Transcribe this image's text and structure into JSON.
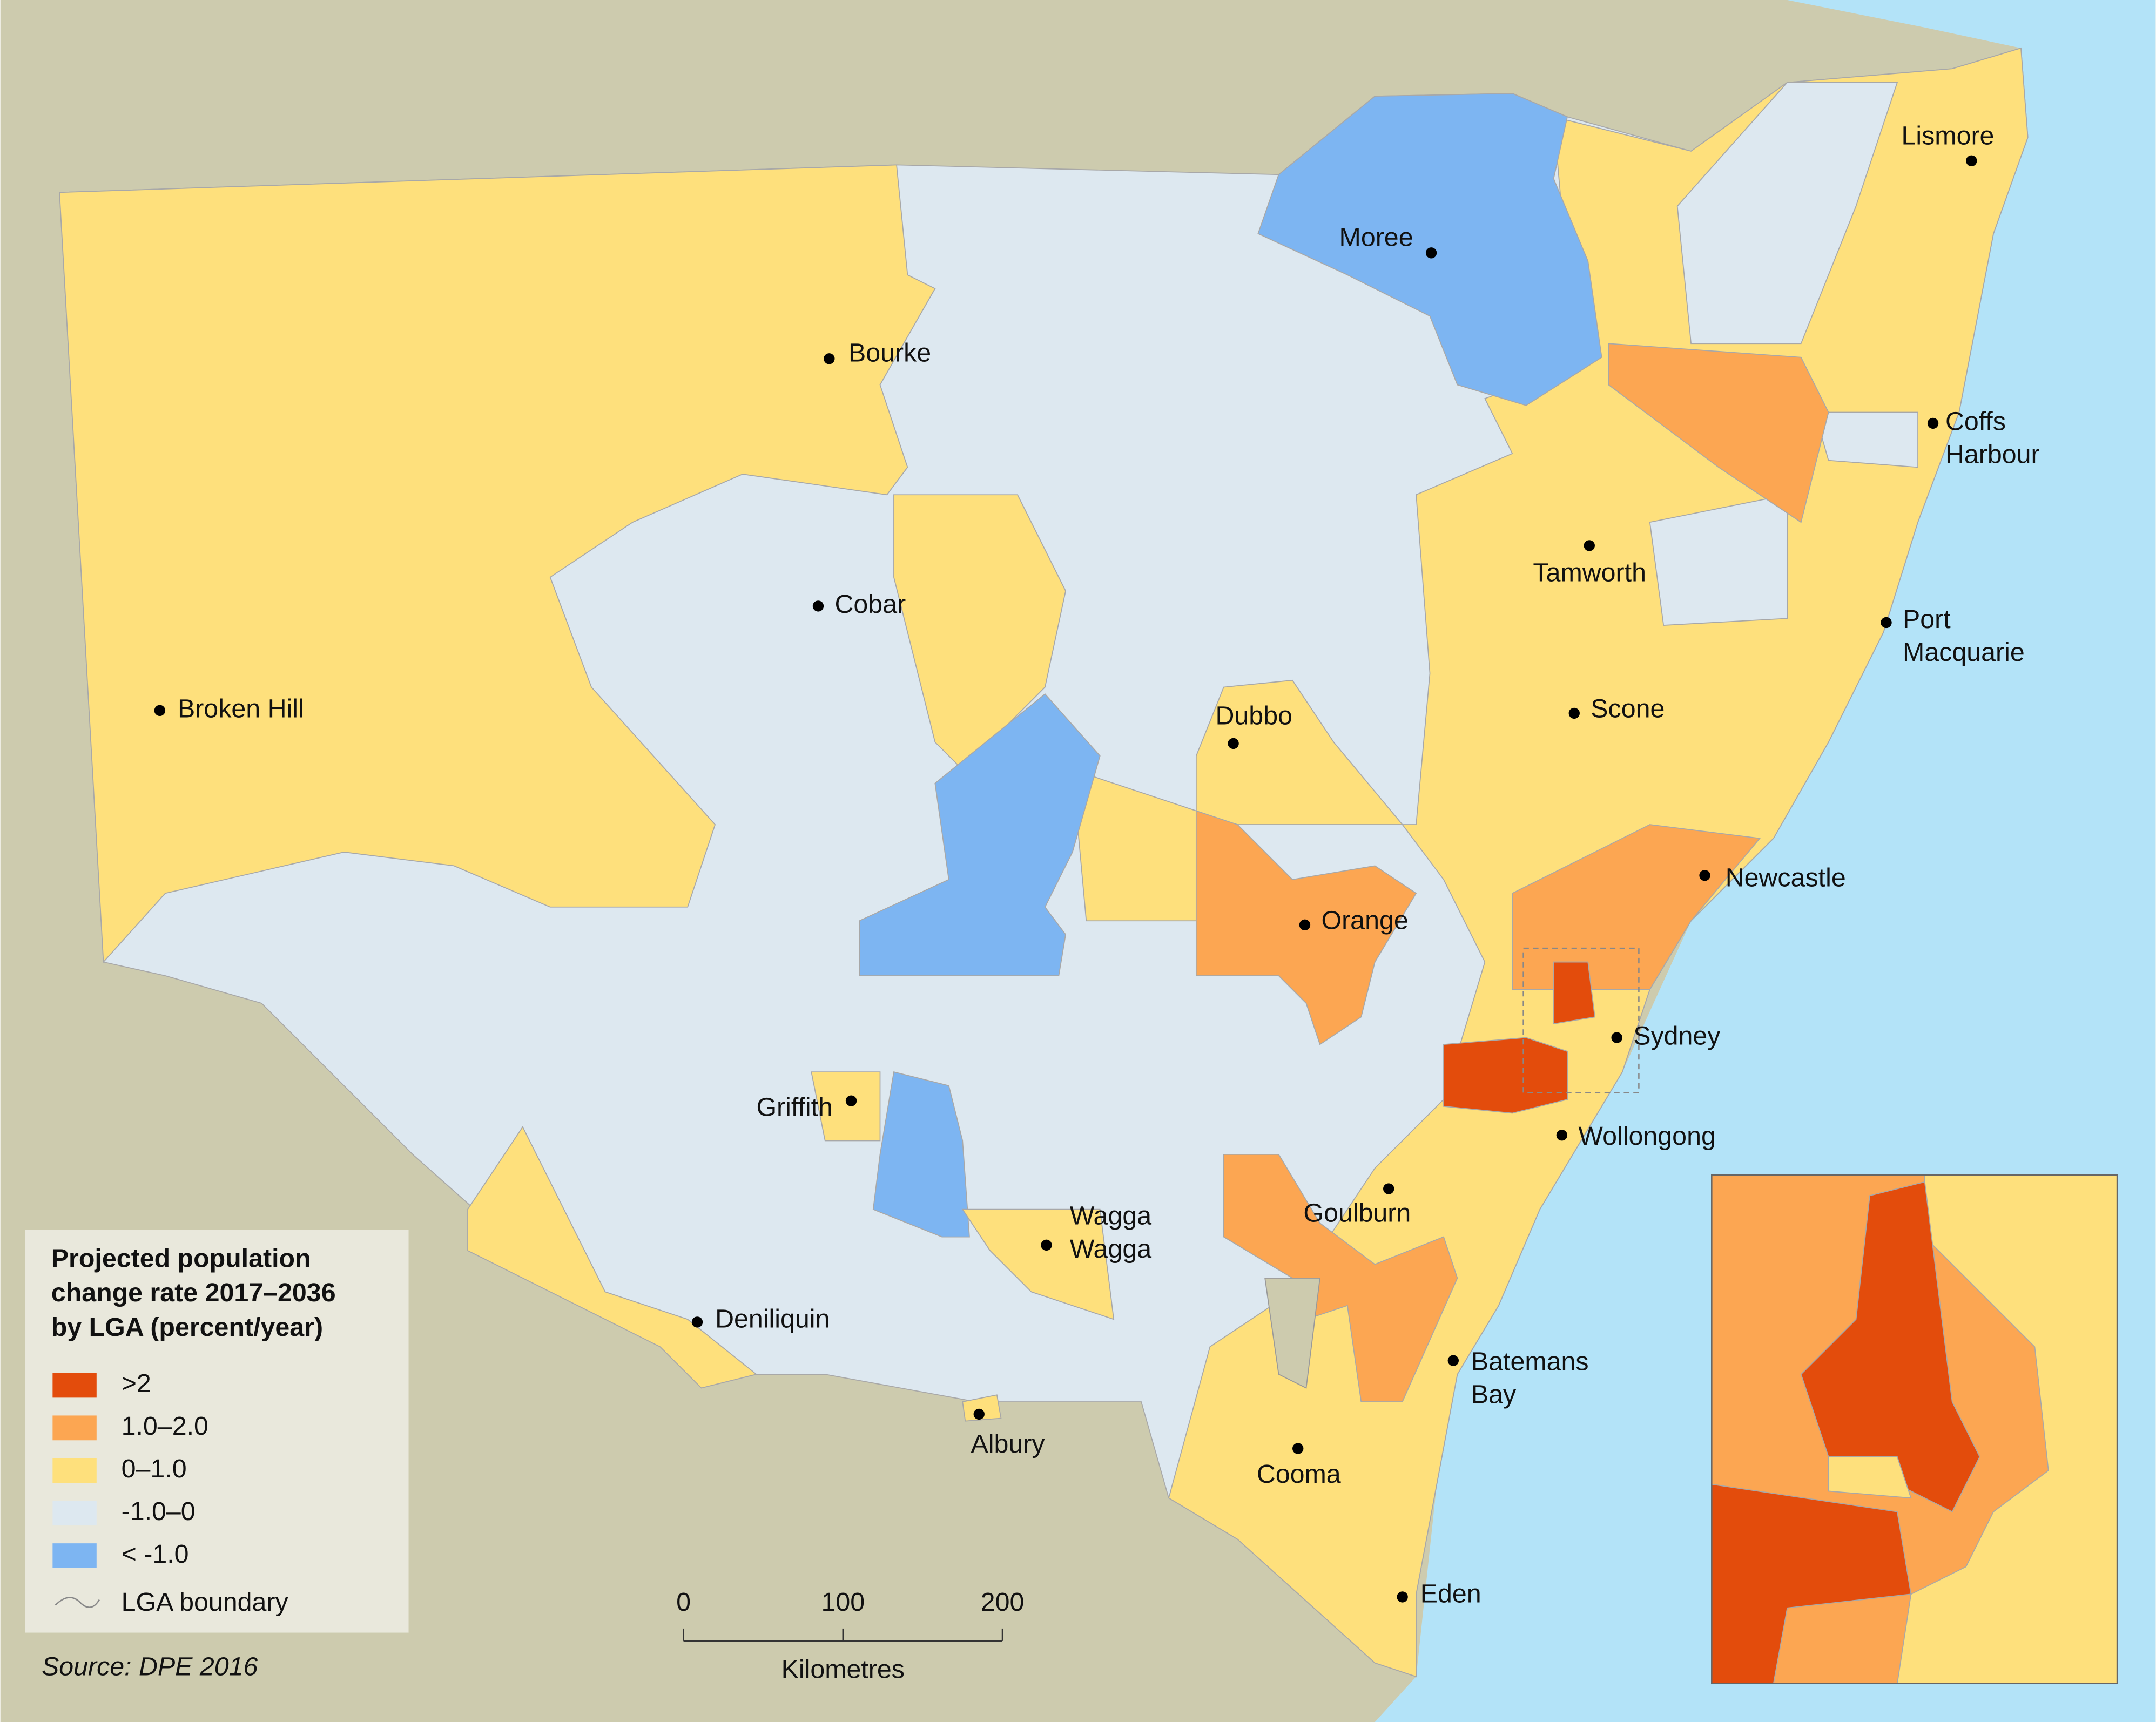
{
  "legend": {
    "title": [
      "Projected population",
      "change rate 2017–2036",
      "by LGA (percent/year)"
    ],
    "items": [
      {
        "label": ">2",
        "color": "#e34c0c"
      },
      {
        "label": "1.0–2.0",
        "color": "#fca652"
      },
      {
        "label": "0–1.0",
        "color": "#fee07c"
      },
      {
        "label": "-1.0–0",
        "color": "#dde8f0"
      },
      {
        "label": "< -1.0",
        "color": "#7db5f2"
      }
    ],
    "boundary": "LGA boundary"
  },
  "towns": [
    {
      "name": [
        "Lismore"
      ]
    },
    {
      "name": [
        "Moree"
      ]
    },
    {
      "name": [
        "Bourke"
      ]
    },
    {
      "name": [
        "Coffs",
        "Harbour"
      ]
    },
    {
      "name": [
        "Tamworth"
      ]
    },
    {
      "name": [
        "Cobar"
      ]
    },
    {
      "name": [
        "Port",
        "Macquarie"
      ]
    },
    {
      "name": [
        "Broken Hill"
      ]
    },
    {
      "name": [
        "Dubbo"
      ]
    },
    {
      "name": [
        "Scone"
      ]
    },
    {
      "name": [
        "Newcastle"
      ]
    },
    {
      "name": [
        "Orange"
      ]
    },
    {
      "name": [
        "Sydney"
      ]
    },
    {
      "name": [
        "Griffith"
      ]
    },
    {
      "name": [
        "Wollongong"
      ]
    },
    {
      "name": [
        "Goulburn"
      ]
    },
    {
      "name": [
        "Wagga",
        "Wagga"
      ]
    },
    {
      "name": [
        "Deniliquin"
      ]
    },
    {
      "name": [
        "Batemans",
        "Bay"
      ]
    },
    {
      "name": [
        "Albury"
      ]
    },
    {
      "name": [
        "Cooma"
      ]
    },
    {
      "name": [
        "Eden"
      ]
    }
  ],
  "scale_bar": {
    "ticks": [
      0,
      100,
      200
    ],
    "unit": "Kilometres"
  },
  "source": "Source: DPE 2016"
}
